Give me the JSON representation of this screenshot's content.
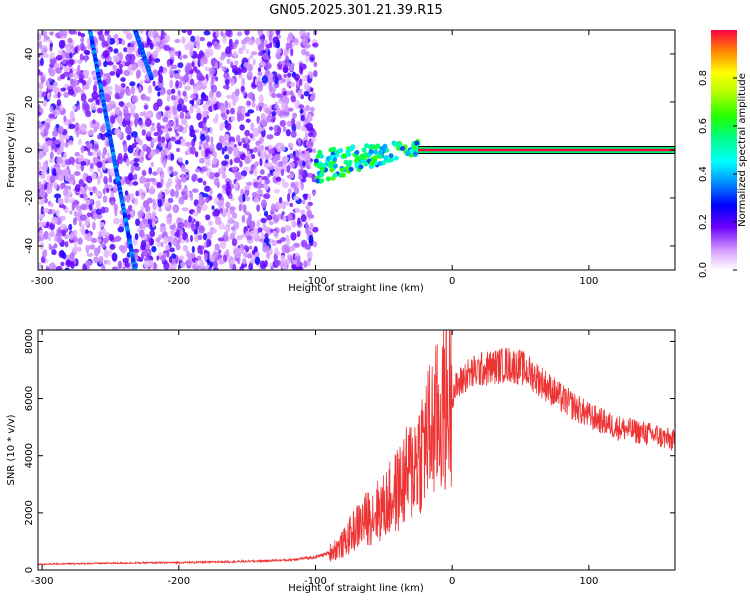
{
  "title": "GN05.2025.301.21.39.R15",
  "chart_data": [
    {
      "type": "heatmap",
      "name": "spectrogram",
      "xlabel": "Height of straight line (km)",
      "ylabel": "Frequency (Hz)",
      "xlim": [
        -303,
        163
      ],
      "ylim": [
        -50,
        50
      ],
      "xticks": [
        -300,
        -200,
        -100,
        0,
        100
      ],
      "yticks": [
        -40,
        -20,
        0,
        20,
        40
      ],
      "colorbar": {
        "label": "Normalized spectral amplitude",
        "range": [
          0,
          1
        ],
        "ticks": [
          0.0,
          0.2,
          0.4,
          0.6,
          0.8
        ]
      },
      "features": {
        "noise_region_x": [
          -303,
          -100
        ],
        "streaks": [
          {
            "x0": -265,
            "y0": 50,
            "x1": -232,
            "y1": -50
          },
          {
            "x0": -232,
            "y0": 50,
            "x1": -220,
            "y1": 30
          }
        ],
        "carrier_freq": 0,
        "carrier_start_x": -25,
        "transition_x": [
          -100,
          -25
        ]
      }
    },
    {
      "type": "line",
      "name": "snr",
      "xlabel": "Height of straight line (km)",
      "ylabel": "SNR (10 * v/v)",
      "xlim": [
        -303,
        163
      ],
      "ylim": [
        0,
        8400
      ],
      "xticks": [
        -300,
        -200,
        -100,
        0,
        100
      ],
      "yticks": [
        0,
        2000,
        4000,
        6000,
        8000
      ],
      "color": "#ee3333",
      "series": [
        {
          "name": "SNR",
          "x": [
            -303,
            -280,
            -250,
            -200,
            -150,
            -120,
            -100,
            -90,
            -80,
            -70,
            -60,
            -50,
            -40,
            -30,
            -20,
            -10,
            0,
            10,
            20,
            30,
            40,
            50,
            60,
            70,
            80,
            90,
            100,
            110,
            120,
            130,
            140,
            150,
            163
          ],
          "y": [
            200,
            220,
            240,
            260,
            300,
            350,
            450,
            600,
            900,
            1500,
            1900,
            2200,
            2800,
            3500,
            4500,
            5300,
            6200,
            6800,
            7000,
            7100,
            7200,
            7100,
            6800,
            6400,
            6000,
            5700,
            5400,
            5200,
            5000,
            4900,
            4800,
            4700,
            4500
          ]
        }
      ]
    }
  ]
}
